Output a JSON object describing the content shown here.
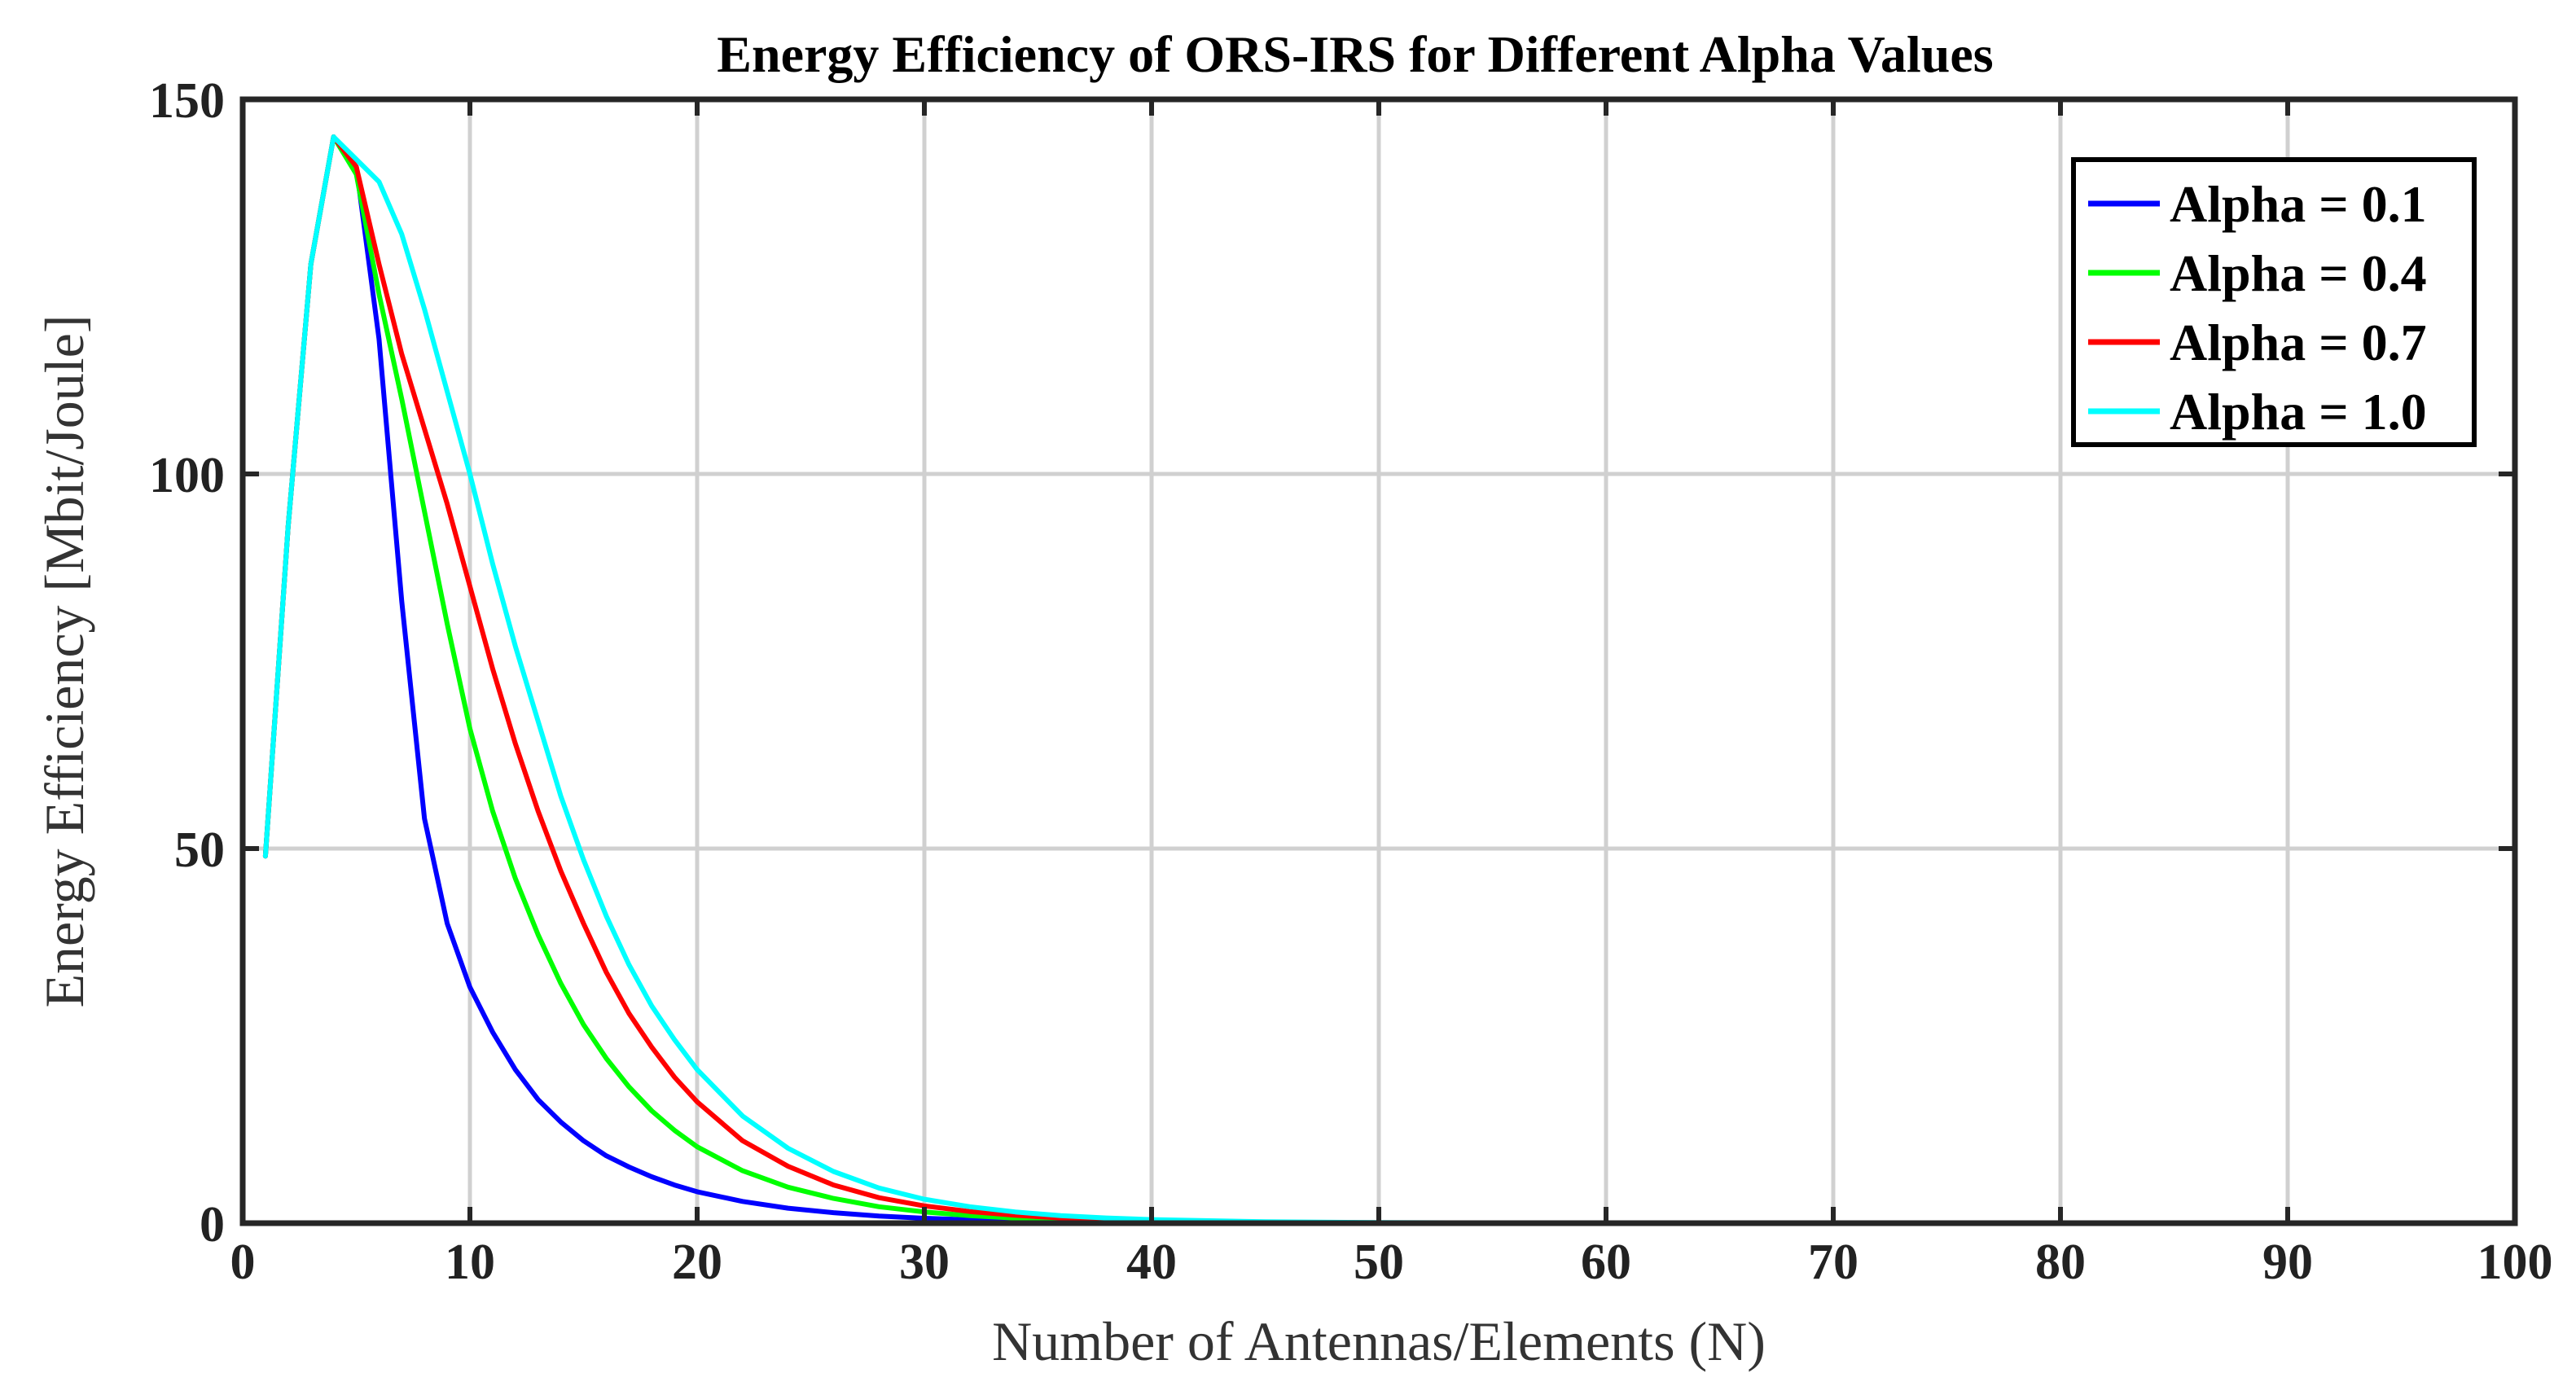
{
  "chart_data": {
    "type": "line",
    "title": "Energy Efficiency of ORS-IRS for Different Alpha Values",
    "xlabel": "Number of Antennas/Elements (N)",
    "ylabel": "Energy Efficiency [Mbit/Joule]",
    "xlim": [
      0,
      100
    ],
    "ylim": [
      0,
      150
    ],
    "xticks": [
      0,
      10,
      20,
      30,
      40,
      50,
      60,
      70,
      80,
      90,
      100
    ],
    "yticks": [
      0,
      50,
      100,
      150
    ],
    "grid": true,
    "legend_position": "top-right",
    "x": [
      1,
      2,
      3,
      4,
      5,
      6,
      7,
      8,
      9,
      10,
      11,
      12,
      13,
      14,
      15,
      16,
      17,
      18,
      19,
      20,
      22,
      24,
      26,
      28,
      30,
      32,
      34,
      36,
      38,
      40,
      45,
      50,
      60,
      70,
      80,
      90,
      100
    ],
    "series": [
      {
        "name": "Alpha = 0.1",
        "color": "#0000ff",
        "values": [
          49,
          93,
          128,
          145,
          141,
          118,
          83,
          54,
          40,
          31.5,
          25.5,
          20.5,
          16.5,
          13.5,
          11,
          9,
          7.5,
          6.2,
          5.1,
          4.2,
          2.9,
          2.0,
          1.4,
          0.95,
          0.65,
          0.45,
          0.3,
          0.2,
          0.14,
          0.1,
          0.04,
          0.02,
          0,
          0,
          0,
          0,
          0
        ]
      },
      {
        "name": "Alpha = 0.4",
        "color": "#00ff00",
        "values": [
          49,
          93,
          128,
          145,
          140,
          124,
          110,
          95,
          80,
          66,
          55,
          46,
          38.5,
          32,
          26.5,
          22,
          18.2,
          15,
          12.4,
          10.2,
          7,
          4.8,
          3.3,
          2.2,
          1.5,
          1.0,
          0.68,
          0.46,
          0.31,
          0.21,
          0.08,
          0.03,
          0.005,
          0,
          0,
          0,
          0
        ]
      },
      {
        "name": "Alpha = 0.7",
        "color": "#ff0000",
        "values": [
          49,
          93,
          128,
          145,
          141,
          128,
          116,
          106,
          96,
          85,
          74,
          64,
          55,
          47,
          40,
          33.5,
          28,
          23.5,
          19.5,
          16.2,
          11,
          7.6,
          5.1,
          3.4,
          2.3,
          1.55,
          1.05,
          0.7,
          0.47,
          0.32,
          0.12,
          0.045,
          0.006,
          0,
          0,
          0,
          0
        ]
      },
      {
        "name": "Alpha = 1.0",
        "color": "#00ffff",
        "values": [
          49,
          93,
          128,
          145,
          142,
          139,
          132,
          122,
          111,
          100,
          88,
          77,
          67,
          57,
          48.5,
          41,
          34.5,
          29,
          24.5,
          20.5,
          14.3,
          10,
          6.9,
          4.7,
          3.2,
          2.2,
          1.5,
          1.0,
          0.7,
          0.48,
          0.19,
          0.075,
          0.012,
          0.002,
          0,
          0,
          0
        ]
      }
    ]
  }
}
